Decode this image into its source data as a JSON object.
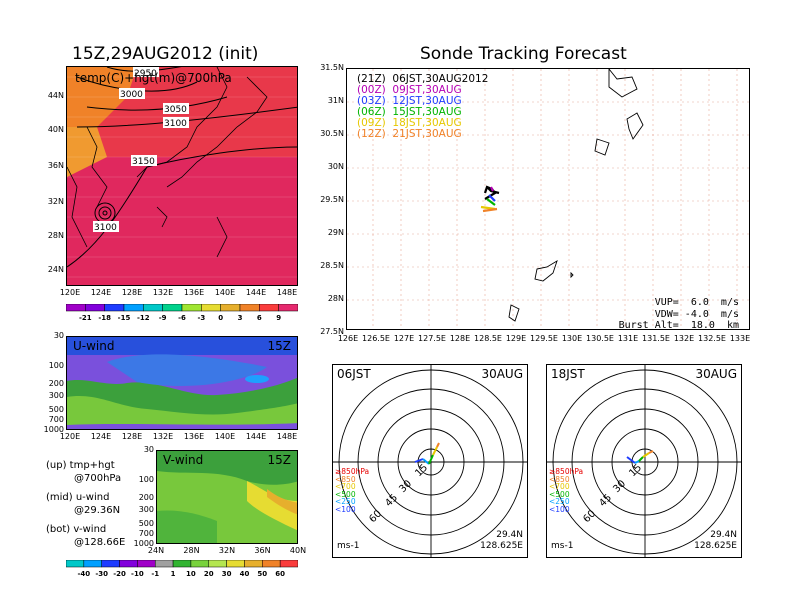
{
  "titles": {
    "init": "15Z,29AUG2012 (init)",
    "main": "Sonde Tracking Forecast"
  },
  "map700": {
    "label": "temp(C)+hgt(m)@700hPa",
    "contours": [
      "2950",
      "3000",
      "3050",
      "3100",
      "3150",
      "3100"
    ],
    "x_ticks": [
      "120E",
      "124E",
      "128E",
      "132E",
      "136E",
      "140E",
      "144E",
      "148E"
    ],
    "y_ticks": [
      "44N",
      "40N",
      "36N",
      "32N",
      "28N",
      "24N"
    ]
  },
  "temp_colorbar": {
    "labels": [
      "-21",
      "-18",
      "-15",
      "-12",
      "-9",
      "-6",
      "-3",
      "0",
      "3",
      "6",
      "9"
    ],
    "colors": [
      "#a000c8",
      "#8200dc",
      "#1e3cff",
      "#00a0ff",
      "#00c8c8",
      "#00d28c",
      "#a0e632",
      "#e6dc32",
      "#e6af2d",
      "#f08228",
      "#fa3c3c",
      "#e6286e"
    ]
  },
  "uwind": {
    "label": "U-wind",
    "time": "15Z",
    "y_ticks": [
      "30",
      "100",
      "200",
      "300",
      "500",
      "700",
      "1000"
    ],
    "x_ticks": [
      "120E",
      "124E",
      "128E",
      "132E",
      "136E",
      "140E",
      "144E",
      "148E"
    ]
  },
  "vwind": {
    "label": "V-wind",
    "time": "15Z",
    "y_ticks": [
      "30",
      "100",
      "200",
      "300",
      "500",
      "700",
      "1000"
    ],
    "x_ticks": [
      "24N",
      "28N",
      "32N",
      "36N",
      "40N"
    ]
  },
  "legend_notes": [
    {
      "line1": "(up) tmp+hgt",
      "line2": "@700hPa"
    },
    {
      "line1": "(mid) u-wind",
      "line2": "@29.36N"
    },
    {
      "line1": "(bot) v-wind",
      "line2": "@128.66E"
    }
  ],
  "wind_colorbar": {
    "labels": [
      "-40",
      "-30",
      "-20",
      "-10",
      "-1",
      "1",
      "10",
      "20",
      "30",
      "40",
      "50",
      "60"
    ],
    "colors": [
      "#00c8c8",
      "#00a0ff",
      "#1e3cff",
      "#8200dc",
      "#a000c8",
      "#a0a0a0",
      "#32b432",
      "#78d23c",
      "#b4e650",
      "#e6dc32",
      "#e6af2d",
      "#f08228",
      "#fa3c3c"
    ]
  },
  "tracks": [
    {
      "label": "(21Z)  06JST,30AUG2012",
      "color": "#000000"
    },
    {
      "label": "(00Z)  09JST,30AUG",
      "color": "#b400b4"
    },
    {
      "label": "(03Z)  12JST,30AUG",
      "color": "#1e3cff"
    },
    {
      "label": "(06Z)  15JST,30AUG",
      "color": "#00b400"
    },
    {
      "label": "(09Z)  18JST,30AUG",
      "color": "#e6c800"
    },
    {
      "label": "(12Z)  21JST,30AUG",
      "color": "#f08228"
    }
  ],
  "main_map": {
    "x_ticks": [
      "126E",
      "126.5E",
      "127E",
      "127.5E",
      "128E",
      "128.5E",
      "129E",
      "129.5E",
      "130E",
      "130.5E",
      "131E",
      "131.5E",
      "132E",
      "132.5E",
      "133E"
    ],
    "y_ticks": [
      "31.5N",
      "31N",
      "30.5N",
      "30N",
      "29.5N",
      "29N",
      "28.5N",
      "28N",
      "27.5N"
    ],
    "vup": "VUP=  6.0  m/s",
    "vdw": "VDW= -4.0  m/s",
    "burst": "Burst Alt=  18.0  km"
  },
  "polar_left": {
    "time": "06JST",
    "date": "30AUG",
    "ring_labels": [
      "15",
      "30",
      "45",
      "60"
    ],
    "levels": [
      "≥850hPa",
      "<850",
      "<700",
      "<500",
      "<250",
      "<100"
    ],
    "level_colors": [
      "#e60000",
      "#f08228",
      "#e6c800",
      "#00b400",
      "#00a0ff",
      "#1e3cff"
    ],
    "unit": "ms-1",
    "lat": "29.4N",
    "lon": "128.625E"
  },
  "polar_right": {
    "time": "18JST",
    "date": "30AUG",
    "ring_labels": [
      "15",
      "30",
      "45",
      "60"
    ],
    "levels": [
      "≥850hPa",
      "<850",
      "<700",
      "<500",
      "<250",
      "<100"
    ],
    "level_colors": [
      "#e60000",
      "#f08228",
      "#e6c800",
      "#00b400",
      "#00a0ff",
      "#1e3cff"
    ],
    "unit": "ms-1",
    "lat": "29.4N",
    "lon": "128.625E"
  }
}
